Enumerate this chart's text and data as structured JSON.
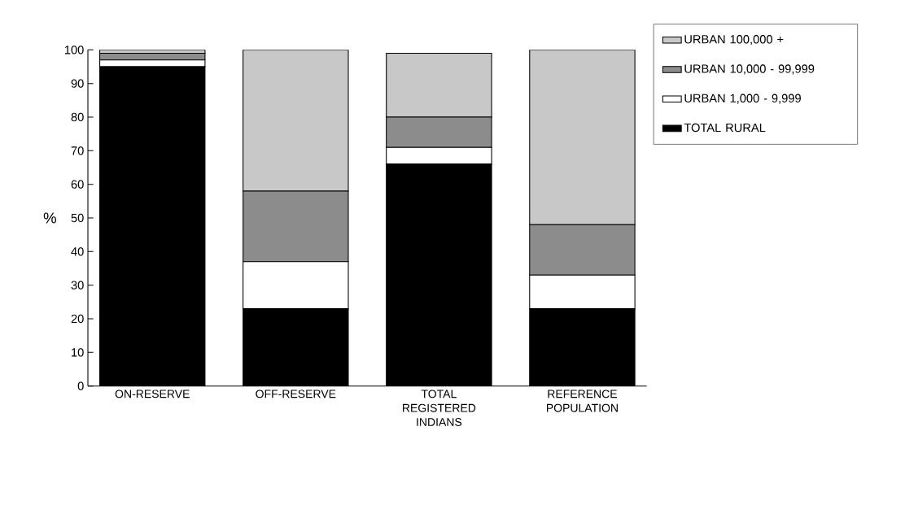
{
  "chart_data": {
    "type": "bar",
    "stacked": true,
    "ylabel": "%",
    "categories": [
      "ON-RESERVE",
      "OFF-RESERVE",
      "TOTAL REGISTERED INDIANS",
      "REFERENCE POPULATION"
    ],
    "series": [
      {
        "name": "TOTAL RURAL",
        "color": "#000000",
        "values": [
          95,
          23,
          66,
          23
        ]
      },
      {
        "name": "URBAN 1,000 - 9,999",
        "color": "#ffffff",
        "values": [
          2,
          14,
          5,
          10
        ]
      },
      {
        "name": "URBAN 10,000 - 99,999",
        "color": "#8c8c8c",
        "values": [
          2,
          21,
          9,
          15
        ]
      },
      {
        "name": "URBAN 100,000 +",
        "color": "#c8c8c8",
        "values": [
          1,
          42,
          19,
          52
        ]
      }
    ],
    "ylim": [
      0,
      100
    ],
    "yticks": [
      0,
      10,
      20,
      30,
      40,
      50,
      60,
      70,
      80,
      90,
      100
    ],
    "grid": false,
    "legend": "top right"
  }
}
